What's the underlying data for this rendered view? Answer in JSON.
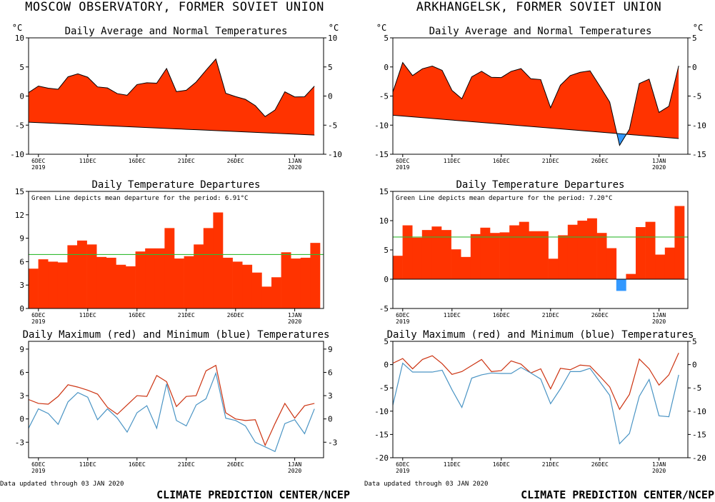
{
  "colors": {
    "warm": "#ff3300",
    "cold": "#3399ff",
    "mean_line": "#33bb33",
    "max_line": "#cc3311",
    "min_line": "#4a94c4"
  },
  "unit_label": "°C",
  "footer": {
    "updated": "Data updated through 03 JAN 2020",
    "credit": "CLIMATE PREDICTION CENTER/NCEP"
  },
  "x_ticks": [
    {
      "day": 1,
      "label": "6DEC",
      "year": "2019"
    },
    {
      "day": 6,
      "label": "11DEC",
      "year": ""
    },
    {
      "day": 11,
      "label": "16DEC",
      "year": ""
    },
    {
      "day": 16,
      "label": "21DEC",
      "year": ""
    },
    {
      "day": 21,
      "label": "26DEC",
      "year": ""
    },
    {
      "day": 27,
      "label": "1JAN",
      "year": "2020"
    }
  ],
  "chart_data": [
    {
      "station": "MOSCOW OBSERVATORY, FORMER SOVIET UNION",
      "days": 30,
      "avg": {
        "type": "area",
        "title": "Daily Average and Normal Temperatures",
        "ylim": [
          -10,
          10
        ],
        "yticks": [
          -10,
          -5,
          0,
          5,
          10
        ],
        "normal_start": -4.5,
        "normal_end": -6.7,
        "departure": [
          5.1,
          6.3,
          6.0,
          5.9,
          8.1,
          8.7,
          8.2,
          6.6,
          6.5,
          5.6,
          5.4,
          7.3,
          7.7,
          7.7,
          10.3,
          6.4,
          6.7,
          8.2,
          10.3,
          12.3,
          6.5,
          6.0,
          5.6,
          4.6,
          2.8,
          4.0,
          7.2,
          6.4,
          6.5,
          8.4
        ]
      },
      "dep": {
        "type": "bar",
        "title": "Daily Temperature Departures",
        "ylim": [
          0,
          15
        ],
        "yticks": [
          0,
          3,
          6,
          9,
          12,
          15
        ],
        "note": "Green Line depicts mean departure for the period: 6.91°C",
        "mean": 6.91
      },
      "mm": {
        "type": "line",
        "title": "Daily Maximum (red) and Minimum (blue) Temperatures",
        "ylim": [
          -5,
          10
        ],
        "yticks": [
          -3,
          0,
          3,
          6,
          9
        ],
        "max": [
          2.5,
          2.0,
          1.9,
          2.9,
          4.4,
          4.1,
          3.7,
          3.2,
          1.5,
          0.6,
          1.8,
          3.0,
          2.9,
          5.6,
          4.8,
          1.6,
          2.9,
          3.0,
          6.2,
          6.9,
          0.8,
          0.0,
          -0.2,
          -0.1,
          -3.4,
          -0.6,
          2.0,
          0.1,
          1.7,
          2.0
        ],
        "min": [
          -1.2,
          1.3,
          0.7,
          -0.7,
          2.2,
          3.4,
          2.8,
          -0.1,
          1.3,
          0.1,
          -1.7,
          0.8,
          1.7,
          -1.2,
          4.5,
          -0.2,
          -0.9,
          1.8,
          2.6,
          5.9,
          0.1,
          -0.2,
          -0.9,
          -3.0,
          -3.6,
          -4.2,
          -0.6,
          -0.1,
          -1.9,
          1.3
        ]
      }
    },
    {
      "station": "ARKHANGELSK, FORMER SOVIET UNION",
      "days": 30,
      "avg": {
        "type": "area",
        "title": "Daily Average and Normal Temperatures",
        "ylim": [
          -15,
          5
        ],
        "yticks": [
          -15,
          -10,
          -5,
          0,
          5
        ],
        "normal_start": -8.3,
        "normal_end": -12.3,
        "departure": [
          4.0,
          9.2,
          7.1,
          8.4,
          9.0,
          8.4,
          5.1,
          3.8,
          7.7,
          8.8,
          7.9,
          8.0,
          9.2,
          9.8,
          8.2,
          8.2,
          3.5,
          7.5,
          9.3,
          10.0,
          10.4,
          7.9,
          5.3,
          -2.0,
          0.9,
          8.9,
          9.8,
          4.2,
          5.4,
          12.5
        ]
      },
      "dep": {
        "type": "bar",
        "title": "Daily Temperature Departures",
        "ylim": [
          -5,
          15
        ],
        "yticks": [
          -5,
          0,
          5,
          10,
          15
        ],
        "note": "Green Line depicts mean departure for the period: 7.20°C",
        "mean": 7.2
      },
      "mm": {
        "type": "line",
        "title": "Daily Maximum (red) and Minimum (blue) Temperatures",
        "ylim": [
          -20,
          5
        ],
        "yticks": [
          -20,
          -15,
          -10,
          -5,
          0,
          5
        ],
        "max": [
          0.3,
          1.3,
          -0.9,
          1.1,
          1.9,
          0.2,
          -2.1,
          -1.5,
          -0.2,
          1.1,
          -1.5,
          -1.3,
          0.8,
          0.1,
          -1.8,
          -0.9,
          -5.2,
          -0.8,
          -1.1,
          -0.1,
          -0.3,
          -2.5,
          -4.8,
          -9.6,
          -6.4,
          1.2,
          -0.9,
          -4.4,
          -2.2,
          2.5
        ],
        "min": [
          -8.7,
          0.3,
          -1.6,
          -1.6,
          -1.6,
          -1.2,
          -5.4,
          -9.2,
          -2.9,
          -2.2,
          -1.8,
          -1.9,
          -1.9,
          -0.6,
          -1.8,
          -3.1,
          -8.4,
          -5.2,
          -1.5,
          -1.5,
          -0.8,
          -3.7,
          -6.6,
          -17.0,
          -14.8,
          -6.8,
          -3.2,
          -11.0,
          -11.2,
          -2.2
        ]
      }
    }
  ]
}
